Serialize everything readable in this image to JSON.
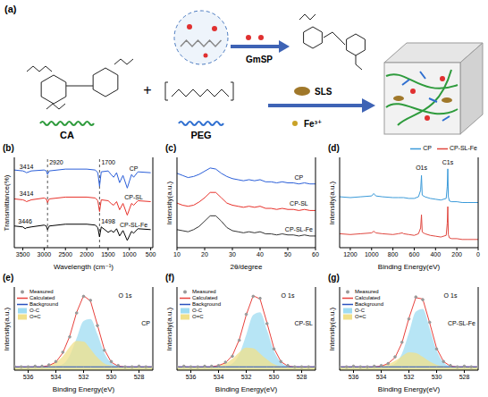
{
  "diagram": {
    "panel": "(a)",
    "labels": {
      "ca": "CA",
      "peg": "PEG",
      "gmsp": "GmSP",
      "sls": "SLS",
      "fe": "Fe³⁺",
      "plus": "+"
    }
  },
  "chart_data": [
    {
      "panel": "(b)",
      "type": "line",
      "x_label": "Wavelength (cm⁻¹)",
      "y_label": "Transmittance(%)",
      "tick_labels": "x",
      "x": [
        3700,
        3500,
        3446,
        3414,
        3300,
        3000,
        2950,
        2920,
        2880,
        2500,
        2000,
        1800,
        1740,
        1700,
        1660,
        1498,
        1430,
        1370,
        1300,
        1230,
        1150,
        1050,
        950,
        900,
        800,
        500
      ],
      "xlim": [
        3700,
        450
      ],
      "xticks": [
        3500,
        3000,
        2500,
        2000,
        1500,
        1000,
        500
      ],
      "ylim": [
        0,
        100
      ],
      "series": [
        {
          "name": "CP",
          "color": "#2b5fd9",
          "values": [
            86,
            85,
            84,
            83,
            85,
            86,
            85,
            81,
            85,
            87,
            87,
            86,
            83,
            68,
            84,
            85,
            81,
            78,
            83,
            72,
            80,
            66,
            81,
            78,
            84,
            83
          ]
        },
        {
          "name": "CP-SL",
          "color": "#e8312a",
          "values": [
            54,
            53,
            52,
            51,
            53,
            55,
            54,
            50,
            54,
            56,
            56,
            55,
            52,
            40,
            53,
            52,
            49,
            47,
            51,
            42,
            49,
            36,
            49,
            47,
            52,
            51
          ]
        },
        {
          "name": "CP-SL-Fe",
          "color": "#000000",
          "values": [
            24,
            23,
            21,
            22,
            23,
            25,
            24,
            20,
            24,
            26,
            26,
            25,
            22,
            12,
            23,
            17,
            19,
            17,
            21,
            13,
            19,
            8,
            18,
            16,
            21,
            20
          ]
        }
      ],
      "reference_lines": [
        2920,
        1700
      ],
      "annotations": [
        {
          "text": "2920",
          "x": 2920,
          "y": 95
        },
        {
          "text": "1700",
          "x": 1700,
          "y": 95
        },
        {
          "text": "3414",
          "x": 3414,
          "y": 90
        },
        {
          "text": "3414",
          "x": 3414,
          "y": 60
        },
        {
          "text": "3446",
          "x": 3446,
          "y": 29
        },
        {
          "text": "1498",
          "x": 1498,
          "y": 29
        }
      ]
    },
    {
      "panel": "(c)",
      "type": "line",
      "x_label": "2θ/degree",
      "y_label": "Intensity(a.u.)",
      "tick_labels": "x",
      "x": [
        10,
        12,
        14,
        16,
        18,
        20,
        22,
        24,
        26,
        28,
        30,
        32,
        34,
        36,
        38,
        40,
        42,
        44,
        46,
        48,
        50,
        52,
        54,
        56,
        58,
        60
      ],
      "xlim": [
        10,
        60
      ],
      "xticks": [
        10,
        20,
        30,
        40,
        50,
        60
      ],
      "ylim": [
        10,
        95
      ],
      "series": [
        {
          "name": "CP",
          "color": "#2b5fd9",
          "values": [
            80,
            78,
            76,
            77,
            79,
            82,
            85,
            84,
            80,
            77,
            75,
            74,
            73,
            74,
            73,
            74,
            72,
            72,
            71,
            72,
            71,
            71,
            70,
            71,
            70,
            70
          ]
        },
        {
          "name": "CP-SL",
          "color": "#e8312a",
          "values": [
            52,
            50,
            49,
            50,
            53,
            57,
            62,
            62,
            57,
            52,
            50,
            49,
            48,
            49,
            48,
            49,
            47,
            47,
            46,
            47,
            46,
            46,
            45,
            46,
            45,
            45
          ]
        },
        {
          "name": "CP-SL-Fe",
          "color": "#333333",
          "values": [
            27,
            26,
            25,
            27,
            30,
            35,
            40,
            40,
            35,
            29,
            26,
            25,
            24,
            25,
            24,
            25,
            23,
            23,
            22,
            23,
            22,
            22,
            21,
            22,
            21,
            21
          ]
        }
      ]
    },
    {
      "panel": "(d)",
      "type": "line",
      "x_label": "Binding Energy(eV)",
      "y_label": "Intensity(a.u.)",
      "tick_labels": "x",
      "legend": "top-right",
      "x": [
        1300,
        1200,
        1100,
        1000,
        980,
        960,
        900,
        800,
        750,
        712,
        700,
        650,
        600,
        560,
        540,
        532,
        525,
        500,
        450,
        400,
        350,
        300,
        290,
        285,
        280,
        270,
        250,
        200,
        150,
        100,
        50,
        0
      ],
      "xlim": [
        1300,
        0
      ],
      "xticks": [
        1200,
        1000,
        800,
        600,
        400,
        200,
        0
      ],
      "ylim": [
        0,
        110
      ],
      "series": [
        {
          "name": "CP",
          "color": "#3a9ad9",
          "values": [
            62,
            61,
            62,
            63,
            66,
            63,
            62,
            61,
            61,
            61,
            61,
            60,
            60,
            62,
            70,
            88,
            64,
            62,
            60,
            59,
            58,
            60,
            75,
            96,
            62,
            57,
            56,
            56,
            55,
            55,
            55,
            55
          ]
        },
        {
          "name": "CP-SL-Fe",
          "color": "#e0473f",
          "values": [
            17,
            16,
            17,
            18,
            20,
            18,
            17,
            16,
            17,
            18,
            17,
            16,
            15,
            17,
            24,
            40,
            19,
            17,
            15,
            14,
            13,
            15,
            30,
            50,
            16,
            12,
            11,
            11,
            10,
            10,
            10,
            10
          ]
        }
      ],
      "annotations": [
        {
          "text": "O1s",
          "x": 532,
          "y": 97
        },
        {
          "text": "C1s",
          "x": 285,
          "y": 104
        }
      ]
    },
    {
      "panel": "(e)",
      "type": "line",
      "title": "CP",
      "x_label": "Binding Energy(eV)",
      "y_label": "Intensity(a.u.)",
      "tick_labels": "x",
      "legend": "top-left",
      "x": [
        537,
        536.5,
        536,
        535.5,
        535,
        534.5,
        534,
        533.5,
        533,
        532.5,
        532,
        531.5,
        531,
        530.5,
        530,
        529.5,
        529,
        528.5,
        528,
        527.5,
        527
      ],
      "xlim": [
        537,
        527
      ],
      "xticks": [
        536,
        534,
        532,
        530,
        528
      ],
      "ylim": [
        0,
        125
      ],
      "series": [
        {
          "name": "Measured",
          "type": "scatter",
          "color": "#999999",
          "values": [
            6,
            5,
            5,
            6,
            6,
            8,
            13,
            27,
            50,
            86,
            111,
            105,
            67,
            30,
            13,
            7,
            5,
            5,
            6,
            5,
            5
          ]
        },
        {
          "name": "Calculated",
          "type": "line",
          "color": "#e8413c",
          "values": [
            5,
            5,
            5,
            5,
            5,
            7,
            12,
            26,
            51,
            87,
            112,
            104,
            68,
            31,
            12,
            6,
            5,
            5,
            5,
            5,
            5
          ]
        },
        {
          "name": "Background",
          "type": "line",
          "color": "#2a52be",
          "values": [
            5,
            5,
            5,
            5,
            5,
            5,
            5,
            5,
            5,
            5,
            5,
            5,
            5,
            5,
            5,
            5,
            5,
            5,
            5,
            5,
            5
          ]
        },
        {
          "name": "O-C",
          "type": "area",
          "color": "#9fdcf2",
          "values": [
            5,
            5,
            5,
            5,
            5,
            5,
            6,
            9,
            22,
            48,
            74,
            77,
            54,
            26,
            11,
            6,
            5,
            5,
            5,
            5,
            5
          ]
        },
        {
          "name": "O=C",
          "type": "area",
          "color": "#f0e08a",
          "values": [
            5,
            5,
            5,
            5,
            5,
            7,
            12,
            21,
            35,
            44,
            43,
            32,
            19,
            10,
            7,
            5,
            5,
            5,
            5,
            5,
            5
          ]
        }
      ],
      "annotations": [
        {
          "text": "O 1s",
          "x": 529,
          "y": 112
        }
      ]
    },
    {
      "panel": "(f)",
      "type": "line",
      "title": "CP-SL",
      "x_label": "Binding Energy(eV)",
      "y_label": "Intensity(a.u.)",
      "tick_labels": "x",
      "legend": "top-left",
      "x": [
        537,
        536.5,
        536,
        535.5,
        535,
        534.5,
        534,
        533.5,
        533,
        532.5,
        532,
        531.5,
        531,
        530.5,
        530,
        529.5,
        529,
        528.5,
        528,
        527.5,
        527
      ],
      "xlim": [
        537,
        527
      ],
      "xticks": [
        536,
        534,
        532,
        530,
        528
      ],
      "ylim": [
        0,
        125
      ],
      "series": [
        {
          "name": "Measured",
          "type": "scatter",
          "color": "#999999",
          "values": [
            5,
            6,
            5,
            5,
            6,
            6,
            7,
            12,
            21,
            45,
            84,
            111,
            108,
            70,
            32,
            13,
            7,
            5,
            5,
            5,
            6
          ]
        },
        {
          "name": "Calculated",
          "type": "line",
          "color": "#e8413c",
          "values": [
            5,
            5,
            5,
            5,
            5,
            5,
            7,
            11,
            22,
            46,
            83,
            112,
            107,
            71,
            33,
            13,
            6,
            5,
            5,
            5,
            5
          ]
        },
        {
          "name": "Background",
          "type": "line",
          "color": "#2a52be",
          "values": [
            5,
            5,
            5,
            5,
            5,
            5,
            5,
            5,
            5,
            5,
            5,
            5,
            5,
            5,
            5,
            5,
            5,
            5,
            5,
            5,
            5
          ]
        },
        {
          "name": "O-C",
          "type": "area",
          "color": "#9fdcf2",
          "values": [
            5,
            5,
            5,
            5,
            5,
            5,
            5,
            6,
            10,
            24,
            53,
            83,
            87,
            60,
            29,
            12,
            6,
            5,
            5,
            5,
            5
          ]
        },
        {
          "name": "O=C",
          "type": "area",
          "color": "#f0e08a",
          "values": [
            5,
            5,
            5,
            5,
            5,
            5,
            7,
            10,
            17,
            27,
            34,
            33,
            25,
            16,
            9,
            6,
            5,
            5,
            5,
            5,
            5
          ]
        }
      ],
      "annotations": [
        {
          "text": "O 1s",
          "x": 529,
          "y": 112
        }
      ]
    },
    {
      "panel": "(g)",
      "type": "line",
      "title": "CP-SL-Fe",
      "x_label": "Binding Energy(eV)",
      "y_label": "Intensity(a.u.)",
      "tick_labels": "x",
      "legend": "top-left",
      "x": [
        537,
        536.5,
        536,
        535.5,
        535,
        534.5,
        534,
        533.5,
        533,
        532.5,
        532,
        531.5,
        531,
        530.5,
        530,
        529.5,
        529,
        528.5,
        528,
        527.5,
        527
      ],
      "xlim": [
        537,
        527
      ],
      "xticks": [
        536,
        534,
        532,
        530,
        528
      ],
      "ylim": [
        0,
        125
      ],
      "series": [
        {
          "name": "Measured",
          "type": "scatter",
          "color": "#999999",
          "values": [
            5,
            5,
            6,
            5,
            5,
            6,
            7,
            10,
            20,
            42,
            77,
            110,
            106,
            72,
            32,
            13,
            7,
            5,
            6,
            5,
            5
          ]
        },
        {
          "name": "Calculated",
          "type": "line",
          "color": "#e8413c",
          "values": [
            5,
            5,
            5,
            5,
            5,
            5,
            6,
            10,
            19,
            41,
            78,
            109,
            107,
            71,
            33,
            13,
            6,
            5,
            5,
            5,
            5
          ]
        },
        {
          "name": "Background",
          "type": "line",
          "color": "#2a52be",
          "values": [
            5,
            5,
            5,
            5,
            5,
            5,
            5,
            5,
            5,
            5,
            5,
            5,
            5,
            5,
            5,
            5,
            5,
            5,
            5,
            5,
            5
          ]
        },
        {
          "name": "O-C",
          "type": "area",
          "color": "#9fdcf2",
          "values": [
            5,
            5,
            5,
            5,
            5,
            5,
            5,
            6,
            10,
            25,
            56,
            88,
            92,
            63,
            30,
            12,
            6,
            5,
            5,
            5,
            5
          ]
        },
        {
          "name": "O=C",
          "type": "area",
          "color": "#f0e08a",
          "values": [
            5,
            5,
            5,
            5,
            5,
            5,
            6,
            9,
            14,
            21,
            27,
            26,
            20,
            13,
            8,
            6,
            5,
            5,
            5,
            5,
            5
          ]
        }
      ],
      "annotations": [
        {
          "text": "O 1s",
          "x": 529,
          "y": 112
        }
      ]
    }
  ]
}
